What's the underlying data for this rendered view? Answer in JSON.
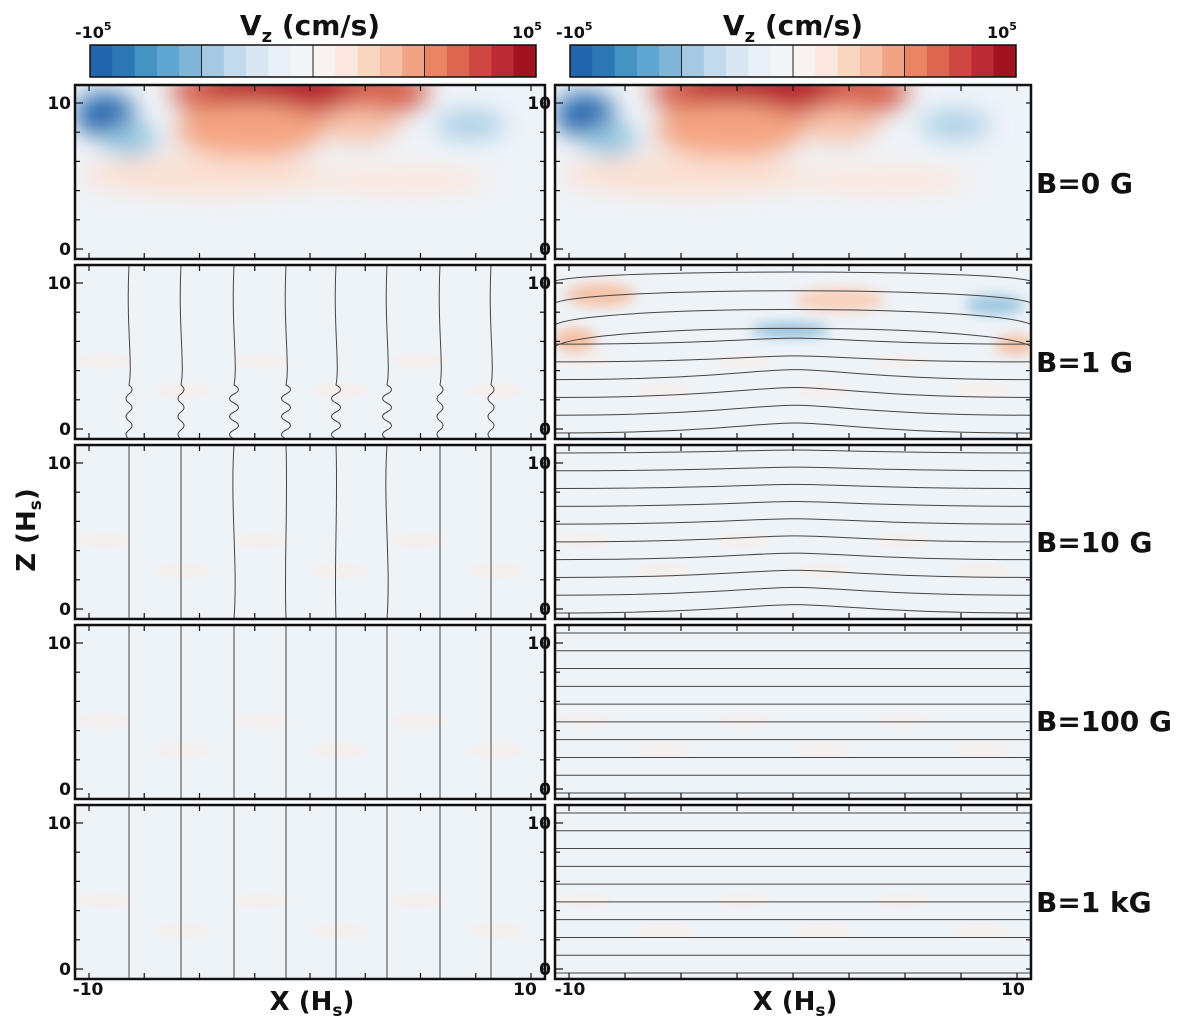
{
  "chart_data": {
    "type": "heatmap",
    "quantity": "Vz",
    "units": "cm/s",
    "colorbar": {
      "label_main": "V",
      "label_sub": "z",
      "label_units": "(cm/s)",
      "min_base": "-10",
      "max_base": "10",
      "exponent": "5",
      "min_value": -100000,
      "max_value": 100000,
      "levels": 20,
      "palette": [
        "#2166ac",
        "#2e77b7",
        "#4393c3",
        "#5ea5cf",
        "#7fb6d8",
        "#a4c9e2",
        "#c3dbec",
        "#d8e7f2",
        "#e8f0f6",
        "#f2f5f8",
        "#f8f3f0",
        "#fbe7dd",
        "#f9d5c2",
        "#f6c0a4",
        "#f2a383",
        "#ea8464",
        "#dd6651",
        "#cd4840",
        "#b92a35",
        "#a1131f"
      ]
    },
    "x_axis": {
      "label_main": "X",
      "label_sub": "s",
      "label_prefix": "(H",
      "label_suffix": ")",
      "range": [
        -10,
        10
      ],
      "tick_labels": [
        "-10",
        "10"
      ]
    },
    "z_axis": {
      "label_main": "Z",
      "label_sub": "s",
      "label_prefix": "(H",
      "label_suffix": ")",
      "range": [
        0,
        10
      ],
      "tick_labels": [
        "0",
        "10"
      ]
    },
    "columns": [
      "vertical field",
      "horizontal field"
    ],
    "rows": [
      {
        "label": "B=0 G",
        "field_lines": "none"
      },
      {
        "label": "B=1 G",
        "field_lines": "distorted"
      },
      {
        "label": "B=10 G",
        "field_lines": "slightly distorted"
      },
      {
        "label": "B=100 G",
        "field_lines": "straight"
      },
      {
        "label": "B=1 kG",
        "field_lines": "straight"
      }
    ]
  }
}
